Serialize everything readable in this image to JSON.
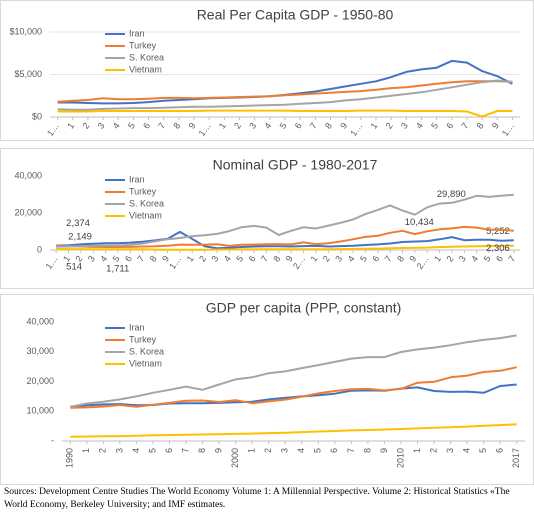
{
  "chart_data": [
    {
      "type": "line",
      "title": "Real Per Capita GDP - 1950-80",
      "categories": [
        "1…",
        "1",
        "2",
        "3",
        "4",
        "5",
        "6",
        "7",
        "8",
        "9",
        "1…",
        "1",
        "2",
        "3",
        "4",
        "5",
        "6",
        "7",
        "8",
        "9",
        "1…",
        "1",
        "2",
        "3",
        "4",
        "5",
        "6",
        "7",
        "8",
        "9",
        "1…"
      ],
      "series": [
        {
          "name": "Iran",
          "color": "#4472c4",
          "values": [
            1700,
            1700,
            1650,
            1600,
            1600,
            1650,
            1750,
            1900,
            2000,
            2100,
            2200,
            2250,
            2300,
            2350,
            2450,
            2600,
            2800,
            3000,
            3300,
            3600,
            3900,
            4200,
            4700,
            5300,
            5600,
            5800,
            6600,
            6400,
            5400,
            4800,
            3900
          ]
        },
        {
          "name": "Turkey",
          "color": "#ed7d31",
          "values": [
            1800,
            1900,
            2000,
            2200,
            2100,
            2100,
            2150,
            2250,
            2250,
            2200,
            2250,
            2300,
            2350,
            2400,
            2450,
            2550,
            2650,
            2750,
            2850,
            2950,
            3050,
            3200,
            3400,
            3500,
            3700,
            3900,
            4100,
            4200,
            4200,
            4200,
            4150
          ]
        },
        {
          "name": "S. Korea",
          "color": "#a5a5a5",
          "values": [
            900,
            850,
            850,
            950,
            1000,
            1050,
            1050,
            1100,
            1150,
            1200,
            1200,
            1250,
            1300,
            1350,
            1400,
            1450,
            1550,
            1650,
            1750,
            1950,
            2100,
            2300,
            2500,
            2700,
            2900,
            3200,
            3500,
            3800,
            4100,
            4300,
            4100
          ]
        },
        {
          "name": "Vietnam",
          "color": "#ffc000",
          "values": [
            650,
            650,
            650,
            700,
            700,
            700,
            700,
            700,
            700,
            700,
            750,
            750,
            750,
            750,
            750,
            750,
            700,
            700,
            700,
            700,
            750,
            750,
            750,
            700,
            700,
            700,
            700,
            650,
            50,
            700,
            700
          ]
        }
      ],
      "ylim": [
        0,
        10000
      ],
      "yticks": [
        {
          "value": 0,
          "label": "$0"
        },
        {
          "value": 5000,
          "label": "$5,000"
        },
        {
          "value": 10000,
          "label": "$10,000"
        }
      ],
      "grid": true,
      "legend": "upper left"
    },
    {
      "type": "line",
      "title": "Nominal GDP - 1980-2017",
      "categories": [
        "1…",
        "1",
        "2",
        "3",
        "4",
        "5",
        "6",
        "7",
        "8",
        "9",
        "1…",
        "1",
        "2",
        "3",
        "4",
        "5",
        "6",
        "7",
        "8",
        "9",
        "2…",
        "1",
        "2",
        "3",
        "4",
        "5",
        "6",
        "7",
        "8",
        "9",
        "2…",
        "1",
        "2",
        "3",
        "4",
        "5",
        "6",
        "7"
      ],
      "series": [
        {
          "name": "Iran",
          "color": "#4472c4",
          "values": [
            2374,
            2600,
            3000,
            3400,
            3600,
            3700,
            4000,
            4500,
            5200,
            6000,
            9800,
            6000,
            2000,
            1000,
            1200,
            1600,
            1900,
            2000,
            2000,
            1900,
            2100,
            2200,
            1900,
            2100,
            2300,
            2700,
            3000,
            3500,
            4300,
            4600,
            4800,
            5800,
            7000,
            5300,
            5500,
            5500,
            5000,
            5252
          ],
          "value_labels": [
            "2,374",
            null,
            null,
            null,
            null,
            null,
            null,
            null,
            null,
            null,
            null,
            null,
            null,
            null,
            null,
            null,
            null,
            null,
            null,
            null,
            null,
            null,
            null,
            null,
            null,
            null,
            null,
            null,
            null,
            null,
            null,
            null,
            null,
            null,
            null,
            null,
            null,
            "5,252"
          ]
        },
        {
          "name": "Turkey",
          "color": "#ed7d31",
          "values": [
            2149,
            2000,
            1900,
            1700,
            1600,
            1600,
            1700,
            1900,
            2000,
            2300,
            2900,
            2800,
            2800,
            3100,
            2200,
            2800,
            2900,
            3100,
            3200,
            3000,
            4100,
            3100,
            3600,
            4600,
            5800,
            7100,
            7700,
            9300,
            10400,
            8600,
            10100,
            11200,
            11700,
            12500,
            12100,
            11000,
            10900,
            10434
          ],
          "value_labels": [
            "2,149",
            null,
            null,
            null,
            null,
            null,
            null,
            null,
            null,
            null,
            null,
            null,
            null,
            null,
            null,
            null,
            null,
            null,
            null,
            null,
            null,
            null,
            null,
            null,
            null,
            null,
            null,
            null,
            null,
            null,
            null,
            null,
            null,
            null,
            null,
            null,
            null,
            "10,434"
          ]
        },
        {
          "name": "S. Korea",
          "color": "#a5a5a5",
          "values": [
            1711,
            1900,
            2000,
            2200,
            2400,
            2400,
            2800,
            3500,
            4700,
            5800,
            6500,
            7500,
            8000,
            8700,
            10200,
            12300,
            13000,
            12100,
            8100,
            10400,
            12300,
            11600,
            13200,
            14700,
            16500,
            19400,
            21700,
            24100,
            21300,
            19100,
            23100,
            25100,
            25500,
            27200,
            29300,
            28700,
            29300,
            29890
          ],
          "value_labels": [
            "1,711",
            null,
            null,
            null,
            null,
            null,
            null,
            null,
            null,
            null,
            null,
            null,
            null,
            null,
            null,
            null,
            null,
            null,
            null,
            null,
            null,
            null,
            null,
            null,
            null,
            null,
            null,
            null,
            null,
            null,
            null,
            null,
            null,
            null,
            null,
            null,
            null,
            "29,890"
          ]
        },
        {
          "name": "Vietnam",
          "color": "#ffc000",
          "values": [
            514,
            500,
            500,
            450,
            400,
            400,
            400,
            400,
            200,
            100,
            100,
            150,
            150,
            200,
            250,
            300,
            350,
            400,
            400,
            400,
            400,
            420,
            450,
            500,
            550,
            650,
            750,
            900,
            1100,
            1150,
            1300,
            1550,
            1750,
            1900,
            2000,
            2100,
            2200,
            2306
          ],
          "value_labels": [
            "514",
            null,
            null,
            null,
            null,
            null,
            null,
            null,
            null,
            null,
            null,
            null,
            null,
            null,
            null,
            null,
            null,
            null,
            null,
            null,
            null,
            null,
            null,
            null,
            null,
            null,
            null,
            null,
            null,
            null,
            null,
            null,
            null,
            null,
            null,
            null,
            null,
            "2,306"
          ]
        }
      ],
      "ylim": [
        0,
        40000
      ],
      "yticks": [
        0,
        {
          "value": 20000,
          "label": "20,000"
        },
        {
          "value": 40000,
          "label": "40,000"
        }
      ],
      "grid": false,
      "legend": "upper left"
    },
    {
      "type": "line",
      "title": "GDP per capita (PPP, constant)",
      "categories": [
        "1990",
        "1",
        "2",
        "3",
        "4",
        "5",
        "6",
        "7",
        "8",
        "9",
        "2000",
        "1",
        "2",
        "3",
        "4",
        "5",
        "6",
        "7",
        "8",
        "9",
        "2010",
        "1",
        "2",
        "3",
        "4",
        "5",
        "6",
        "2017"
      ],
      "series": [
        {
          "name": "Iran",
          "color": "#4472c4",
          "values": [
            11500,
            12000,
            12300,
            12400,
            12000,
            12100,
            12600,
            12700,
            12700,
            12800,
            13000,
            13200,
            14000,
            14500,
            15000,
            15400,
            15900,
            16900,
            17000,
            16900,
            17600,
            18000,
            16800,
            16500,
            16600,
            16200,
            18500,
            19000
          ]
        },
        {
          "name": "Turkey",
          "color": "#ed7d31",
          "values": [
            11200,
            11300,
            11600,
            12100,
            11500,
            12200,
            12800,
            13500,
            13600,
            13100,
            13700,
            12700,
            13300,
            13900,
            14900,
            16000,
            16800,
            17400,
            17500,
            17000,
            17500,
            19600,
            19900,
            21400,
            22000,
            23200,
            23600,
            24800
          ]
        },
        {
          "name": "S. Korea",
          "color": "#a5a5a5",
          "values": [
            11500,
            12600,
            13200,
            14000,
            15000,
            16200,
            17200,
            18300,
            17200,
            19000,
            20700,
            21400,
            22800,
            23400,
            24500,
            25500,
            26600,
            27700,
            28200,
            28200,
            29900,
            30800,
            31400,
            32200,
            33200,
            34000,
            34600,
            35500
          ]
        },
        {
          "name": "Vietnam",
          "color": "#ffc000",
          "values": [
            1400,
            1500,
            1600,
            1650,
            1750,
            1900,
            2000,
            2100,
            2200,
            2250,
            2400,
            2500,
            2650,
            2800,
            3000,
            3200,
            3350,
            3550,
            3700,
            3850,
            4050,
            4250,
            4450,
            4650,
            4850,
            5100,
            5350,
            5600
          ]
        }
      ],
      "ylim": [
        0,
        40000
      ],
      "yticks": [
        {
          "value": 0,
          "label": "-"
        },
        {
          "value": 10000,
          "label": "10,000"
        },
        {
          "value": 20000,
          "label": "20,000"
        },
        {
          "value": 30000,
          "label": "30,000"
        },
        {
          "value": 40000,
          "label": "40,000"
        }
      ],
      "grid": false,
      "legend": "upper left"
    }
  ],
  "source": "Sources: Development Centre Studies The World Economy Volume 1: A Millennial Perspective. Volume 2: Historical Statistics «The World Economy, Berkeley University; and IMF estimates."
}
